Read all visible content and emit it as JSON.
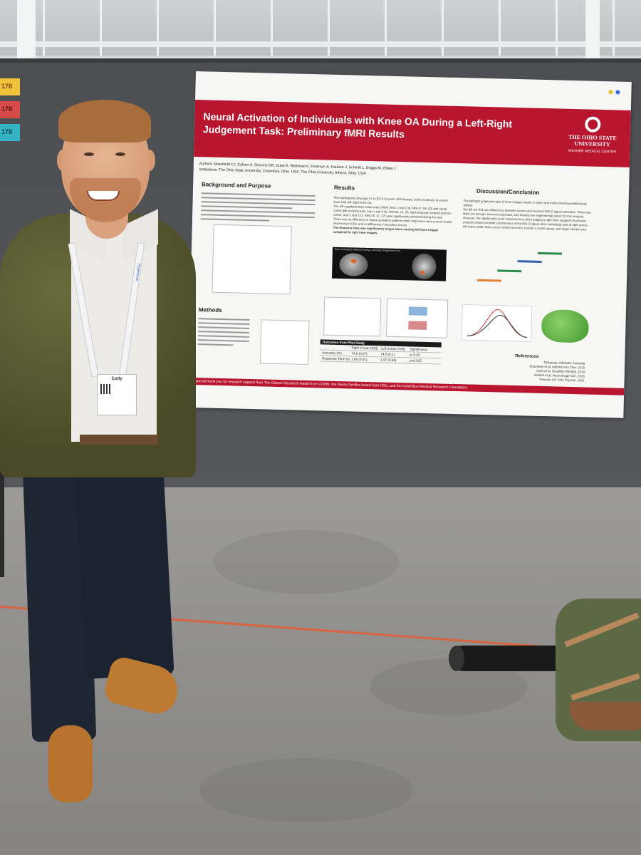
{
  "booth_tags": [
    "178",
    "178",
    "178"
  ],
  "poster": {
    "title": "Neural Activation of Individuals with Knee OA During a Left-Right Judgement Task: Preliminary fMRI Results",
    "university": "THE OHIO STATE UNIVERSITY",
    "center": "WEXNER MEDICAL CENTER",
    "authors": "Authors: Mansfield CJ, Culiver A, Grooms DR, Dube B, Rethman K, Foreman A, Hauben J, Schmitt L, Briggs M, Oñate J",
    "institutions": "Institutions: The Ohio State University, Columbus, Ohio, USA. The Ohio University, Athens, Ohio, USA",
    "sections": {
      "background": "Background and Purpose",
      "methods": "Methods",
      "results": "Results",
      "discussion": "Discussion/Conclusion",
      "references": "References:"
    },
    "results_points": [
      "Five participants [Avg age 51.8 (SD 6.3) years; 80% female; 100% moderate to severe knee OA] with right knee OA.",
      "The left supplementary motor area (SMA) [max z stat 3.08, MNI 47, 65, 62] and visual cortex [left occipital pole, max z stat 4.06, MNI 58, 14, 45; right temporal occipital fusiform cortex, max z stat 3.14, MNI 29, 41, 27] were significantly activated during the task.",
      "There was no difference in neural activation patterns when responses were correct verses incorrect (p>0.05), and no difference in accuracy scores.",
      "The response time was significantly longer when viewing left knee images compared to right knee images."
    ],
    "figure_caption": "Brain Activation Patterns During Left-Right Judgement Task",
    "table": {
      "title": "Outcomes from Pilot Study",
      "columns": [
        "",
        "Right (mean (SD))",
        "Left (mean (SD))",
        "Significance"
      ],
      "rows": [
        [
          "Accuracy (%)",
          "74.6 (0.07)",
          "74.5 (0.1)",
          "p>0.05"
        ],
        [
          "Response Time (s)",
          "1.86 (0.61)",
          "1.97 (0.59)",
          "p=0.015"
        ]
      ]
    },
    "discussion_points": [
      "The left/right judgement task of knee images results in vision and motor planning related brain activity.",
      "We did not find any differences between correct and incorrect BOLD signal estimates. There was likely not enough incorrect responses, and thereby low experimental power for this analysis.",
      "However, the significantly lower response time when judging a right knee suggests that future analysis should consider comparisons of the BOLD signal when individuals look at right verses left knees rather than correct verses incorrect, include a control group, and larger sample size."
    ],
    "references": [
      "NOIgroup. Adelaide, Australia",
      "Shanahan et al. Arthritis Res Ther. 2015",
      "Lluch et al. Disability Rehabil. 2018",
      "Sachell et al. Neuroimage Clin. 2018",
      "Parsons LM. Acta Psychol. 2001"
    ],
    "acknowledgement": "Special thank you for research support from The Gibson Research Award from CCBBI, the Rosita Schiller Award from OSU, and the Columbus Medical Research Foundation."
  },
  "badge": {
    "name": "Cody"
  },
  "lanyard_text": "Powerbock"
}
